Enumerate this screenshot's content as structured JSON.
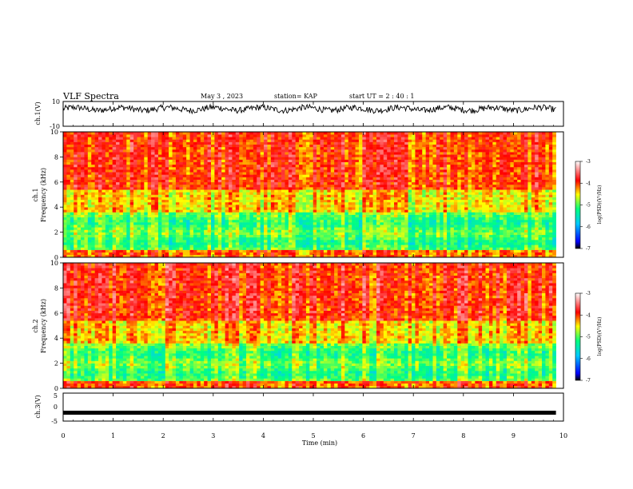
{
  "header": {
    "title": "VLF Spectra",
    "date": "May 3 , 2023",
    "station": "station= KAP",
    "start": "start UT = 2 : 40 : 1"
  },
  "chart_data": [
    {
      "type": "line",
      "name": "ch1-waveform",
      "ylabel": "ch.1(V)",
      "ylim": [
        -10,
        10
      ],
      "ytick_labels": [
        "10",
        "-10"
      ],
      "x_range": [
        0,
        10
      ],
      "data_x_end": 9.85,
      "mean": 4,
      "amplitude": 2.5
    },
    {
      "type": "heatmap",
      "name": "ch1-spectrogram",
      "ylabel_line1": "ch.1",
      "ylabel_line2": "Frequency (kHz)",
      "ylim": [
        0,
        10
      ],
      "yticks": [
        0,
        2,
        4,
        6,
        8,
        10
      ],
      "ytick_labels": [
        "0",
        "2",
        "4",
        "6",
        "8",
        "10"
      ],
      "x_range": [
        0,
        10
      ],
      "data_x_end": 9.85,
      "colorbar": {
        "label": "log(PSD)(V²/Hz)",
        "range": [
          -7,
          -3
        ],
        "tick_labels": [
          "-3",
          "-4",
          "-5",
          "-6",
          "-7"
        ]
      }
    },
    {
      "type": "heatmap",
      "name": "ch2-spectrogram",
      "ylabel_line1": "ch.2",
      "ylabel_line2": "Frequency (kHz)",
      "ylim": [
        0,
        10
      ],
      "yticks": [
        0,
        2,
        4,
        6,
        8,
        10
      ],
      "ytick_labels": [
        "0",
        "2",
        "4",
        "6",
        "8",
        "10"
      ],
      "x_range": [
        0,
        10
      ],
      "data_x_end": 9.85,
      "colorbar": {
        "label": "log(PSD)(V²/Hz)",
        "range": [
          -7,
          -3
        ],
        "tick_labels": [
          "-3",
          "-4",
          "-5",
          "-6",
          "-7"
        ]
      }
    },
    {
      "type": "line",
      "name": "ch3-waveform",
      "ylabel": "ch.3(V)",
      "ylim": [
        -5,
        5
      ],
      "ytick_labels": [
        "5",
        "0",
        "-5"
      ],
      "x_range": [
        0,
        10
      ],
      "data_x_end": 9.85,
      "mean": -2,
      "amplitude": 0.3
    }
  ],
  "x_axis": {
    "label": "Time (min)",
    "ticks": [
      0,
      1,
      2,
      3,
      4,
      5,
      6,
      7,
      8,
      9,
      10
    ],
    "tick_labels": [
      "0",
      "1",
      "2",
      "3",
      "4",
      "5",
      "6",
      "7",
      "8",
      "9",
      "10"
    ]
  },
  "colors": {
    "colorscale": [
      "#000000",
      "#0000ff",
      "#00c8ff",
      "#00ff80",
      "#ffff00",
      "#ff0000",
      "#ffffff"
    ],
    "line": "#000000"
  }
}
